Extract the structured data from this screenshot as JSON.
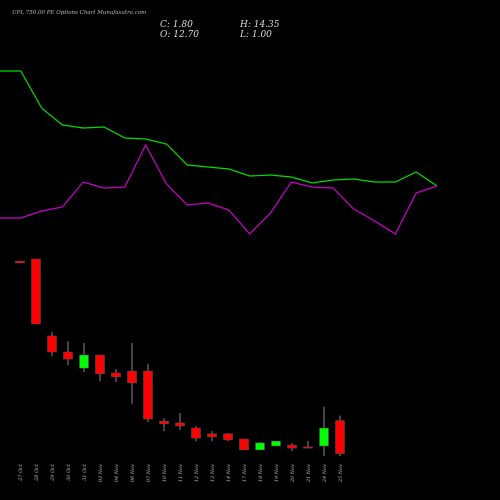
{
  "chart_data": [
    {
      "type": "candlestick",
      "title": "UPL 750.00 PE Options Chart Munafasutra.com",
      "ohlc_labels": {
        "close": "C: 1.80",
        "high": "H: 14.35",
        "open": "O: 12.70",
        "low": "L: 1.00"
      },
      "categories": [
        "27 Oct",
        "28 Oct",
        "29 Oct",
        "30 Oct",
        "31 Oct",
        "03 Nov",
        "04 Nov",
        "06 Nov",
        "07 Nov",
        "10 Nov",
        "11 Nov",
        "12 Nov",
        "13 Nov",
        "14 Nov",
        "17 Nov",
        "18 Nov",
        "19 Nov",
        "20 Nov",
        "21 Nov",
        "24 Nov",
        "25 Nov"
      ],
      "open": [
        65.3,
        66.0,
        40.6,
        35.3,
        30.0,
        34.3,
        28.4,
        29.0,
        29.0,
        12.5,
        11.9,
        10.2,
        8.3,
        8.3,
        6.6,
        3.0,
        4.3,
        4.6,
        4.0,
        4.3,
        12.7
      ],
      "high": [
        65.3,
        66.0,
        41.9,
        38.9,
        38.3,
        34.3,
        29.7,
        38.3,
        31.4,
        13.5,
        15.2,
        10.9,
        9.2,
        8.6,
        6.6,
        5.6,
        5.9,
        5.3,
        5.9,
        17.2,
        14.35
      ],
      "low": [
        64.7,
        44.6,
        34.0,
        31.0,
        28.7,
        25.7,
        25.4,
        18.2,
        12.2,
        9.2,
        9.6,
        5.9,
        5.9,
        5.9,
        3.0,
        3.0,
        4.3,
        2.6,
        3.6,
        1.0,
        1.0
      ],
      "close": [
        64.7,
        44.6,
        35.3,
        33.0,
        34.3,
        28.1,
        27.1,
        25.1,
        13.2,
        11.6,
        10.9,
        6.9,
        7.3,
        6.3,
        3.0,
        5.3,
        5.9,
        3.6,
        3.6,
        10.2,
        1.8
      ],
      "ylim": [
        0,
        100
      ],
      "up_color": "#00ff00",
      "down_color": "#ff0000"
    },
    {
      "type": "line",
      "x": [
        0,
        1,
        2,
        3,
        4,
        5,
        6,
        7,
        8,
        9,
        10,
        11,
        12,
        13,
        14,
        15,
        16,
        17,
        18,
        19,
        20,
        21
      ],
      "xlim": [
        0,
        21
      ],
      "ylim": [
        0,
        250
      ],
      "series": [
        {
          "color": "#00dd00",
          "values": [
            179,
            179,
            142,
            125,
            122,
            123,
            112,
            111,
            106,
            85,
            83,
            81,
            74,
            75,
            73,
            67,
            70,
            71,
            68,
            68,
            78,
            64
          ]
        },
        {
          "color": "#cc00cc",
          "values": [
            32,
            32,
            39,
            43,
            68,
            62,
            63,
            105,
            66,
            45,
            47,
            40,
            16,
            37,
            68,
            63,
            62,
            41,
            29,
            16,
            57,
            64
          ]
        }
      ]
    }
  ]
}
